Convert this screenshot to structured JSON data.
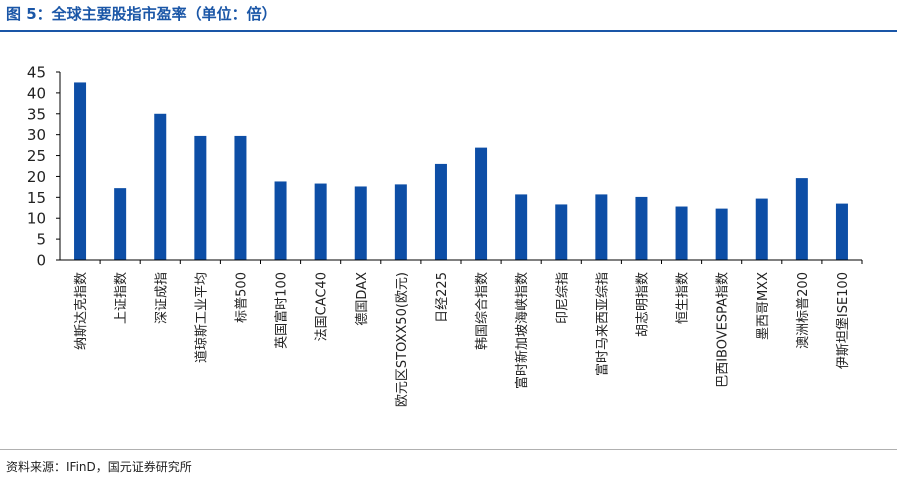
{
  "figure": {
    "title": "图 5：全球主要股指市盈率（单位：倍）",
    "source": "资料来源：IFinD，国元证券研究所"
  },
  "colors": {
    "bar": "#0d4ea6",
    "title": "#1a56a7",
    "axis": "#000000"
  },
  "chart_data": {
    "type": "bar",
    "title": "",
    "xlabel": "",
    "ylabel": "",
    "ylim": [
      0,
      45
    ],
    "yticks": [
      0,
      5,
      10,
      15,
      20,
      25,
      30,
      35,
      40,
      45
    ],
    "grid": false,
    "legend": "none",
    "categories": [
      "纳斯达克指数",
      "上证指数",
      "深证成指",
      "道琼斯工业平均",
      "标普500",
      "英国富时100",
      "法国CAC40",
      "德国DAX",
      "欧元区STOXX50(欧元)",
      "日经225",
      "韩国综合指数",
      "富时新加坡海峡指数",
      "印尼综指",
      "富时马来西亚综指",
      "胡志明指数",
      "恒生指数",
      "巴西IBOVESPA指数",
      "墨西哥MXX",
      "澳洲标普200",
      "伊斯坦堡ISE100"
    ],
    "values": [
      42.5,
      17.2,
      35.0,
      29.7,
      29.7,
      18.8,
      18.3,
      17.6,
      18.1,
      23.0,
      26.9,
      15.7,
      13.3,
      15.7,
      15.1,
      12.8,
      12.3,
      14.7,
      19.6,
      13.5
    ]
  }
}
